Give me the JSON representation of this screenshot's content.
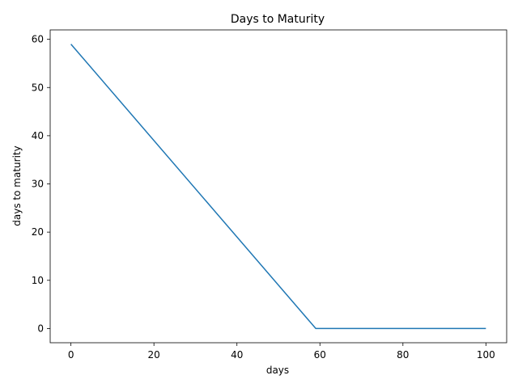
{
  "chart_data": {
    "type": "line",
    "title": "Days to Maturity",
    "xlabel": "days",
    "ylabel": "days to maturity",
    "xlim": [
      -5,
      105
    ],
    "ylim": [
      -2.95,
      61.95
    ],
    "xticks": [
      0,
      20,
      40,
      60,
      80,
      100
    ],
    "yticks": [
      0,
      10,
      20,
      30,
      40,
      50,
      60
    ],
    "grid": false,
    "series": [
      {
        "color": "#1f77b4",
        "x": [
          0,
          59,
          100
        ],
        "y": [
          59,
          0,
          0
        ]
      }
    ]
  }
}
